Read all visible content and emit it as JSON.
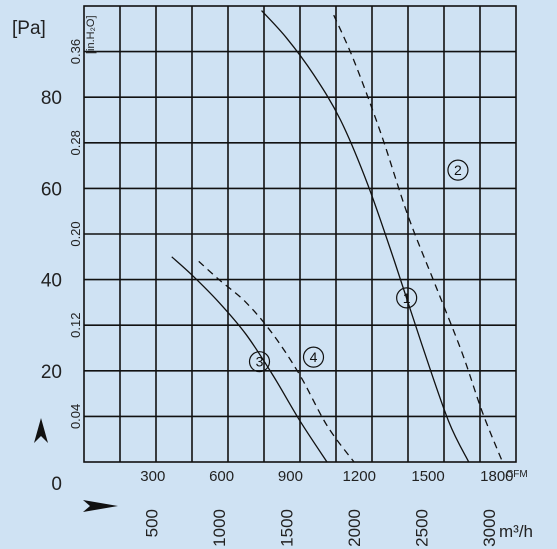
{
  "chart_data": {
    "type": "line",
    "title": "",
    "units": {
      "pressure_left": "[Pa]",
      "pressure_inner": "[in.H₂O]",
      "flow_bottom_upper": "CFM",
      "flow_bottom_lower": "m³/h"
    },
    "axes": {
      "y_pa": {
        "range": [
          0,
          100
        ],
        "ticks": [
          "0",
          "20",
          "40",
          "60",
          "80"
        ],
        "tick_values": [
          0,
          20,
          40,
          60,
          80
        ]
      },
      "y_inh2o": {
        "ticks": [
          "0.04",
          "0.12",
          "0.20",
          "0.28",
          "0.36"
        ],
        "tick_values": [
          0.04,
          0.12,
          0.2,
          0.28,
          0.36
        ]
      },
      "x_cfm": {
        "ticks": [
          "300",
          "600",
          "900",
          "1200",
          "1500",
          "1800"
        ],
        "tick_values": [
          300,
          600,
          900,
          1200,
          1500,
          1800
        ]
      },
      "x_m3h": {
        "range": [
          0,
          3200
        ],
        "ticks": [
          "500",
          "1000",
          "1500",
          "2000",
          "2500",
          "3000"
        ],
        "tick_values": [
          500,
          1000,
          1500,
          2000,
          2500,
          3000
        ]
      }
    },
    "grid": true,
    "series": [
      {
        "marker": "1",
        "style": "solid",
        "x": [
          1315,
          1500,
          1700,
          1900,
          2100,
          2300,
          2500,
          2700,
          2850
        ],
        "y": [
          99,
          93,
          85,
          75,
          61,
          44,
          26,
          9,
          0
        ],
        "marker_at": [
          2390,
          36
        ]
      },
      {
        "marker": "2",
        "style": "dashed",
        "x": [
          1850,
          2000,
          2200,
          2400,
          2600,
          2800,
          2950,
          3100
        ],
        "y": [
          98,
          88,
          72,
          54,
          39,
          24,
          11,
          0
        ],
        "marker_at": [
          2770,
          64
        ]
      },
      {
        "marker": "3",
        "style": "solid",
        "x": [
          650,
          800,
          1000,
          1200,
          1400,
          1600,
          1800
        ],
        "y": [
          45,
          41,
          35,
          28,
          19,
          9,
          0
        ],
        "marker_at": [
          1300,
          22
        ]
      },
      {
        "marker": "4",
        "style": "dashed",
        "x": [
          850,
          1000,
          1200,
          1400,
          1600,
          1800,
          2000
        ],
        "y": [
          44,
          40,
          35,
          28,
          19,
          8,
          0
        ],
        "marker_at": [
          1700,
          23
        ]
      }
    ]
  },
  "icons": {
    "up_arrow": "arrow-up-icon",
    "right_arrow": "arrow-right-icon"
  }
}
